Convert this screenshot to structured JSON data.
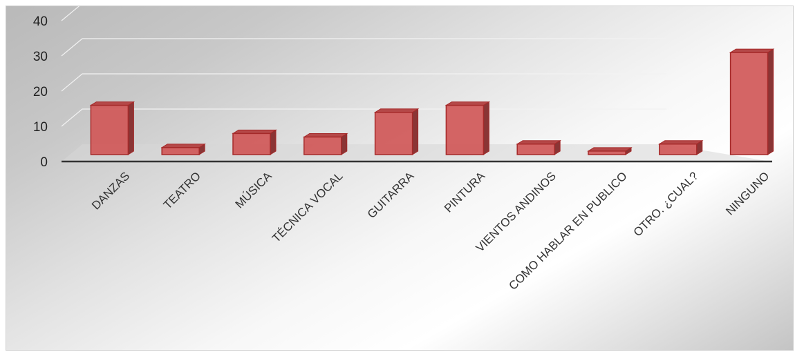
{
  "chart_data": {
    "type": "bar",
    "title": "",
    "xlabel": "",
    "ylabel": "",
    "ylim": [
      0,
      40
    ],
    "yticks": [
      0,
      10,
      20,
      30,
      40
    ],
    "grid": true,
    "legend": "none",
    "style": "3d-column",
    "categories": [
      "DANZAS",
      "TEATRO",
      "MÚSICA",
      "TÉCNICA VOCAL",
      "GUITARRA",
      "PINTURA",
      "VIENTOS ANDINOS",
      "COMO HABLAR EN PUBLICO",
      "OTRO. ¿CUAL?",
      "NINGUNO"
    ],
    "values": [
      14,
      2,
      6,
      5,
      12,
      14,
      3,
      1,
      3,
      29
    ],
    "colors": {
      "bar_front": "#d05858",
      "bar_side": "#8a3535",
      "bar_top": "#b54848",
      "bar_edge": "#a52a2a",
      "axis": "#333333",
      "grid": "#f2f2f2"
    }
  }
}
